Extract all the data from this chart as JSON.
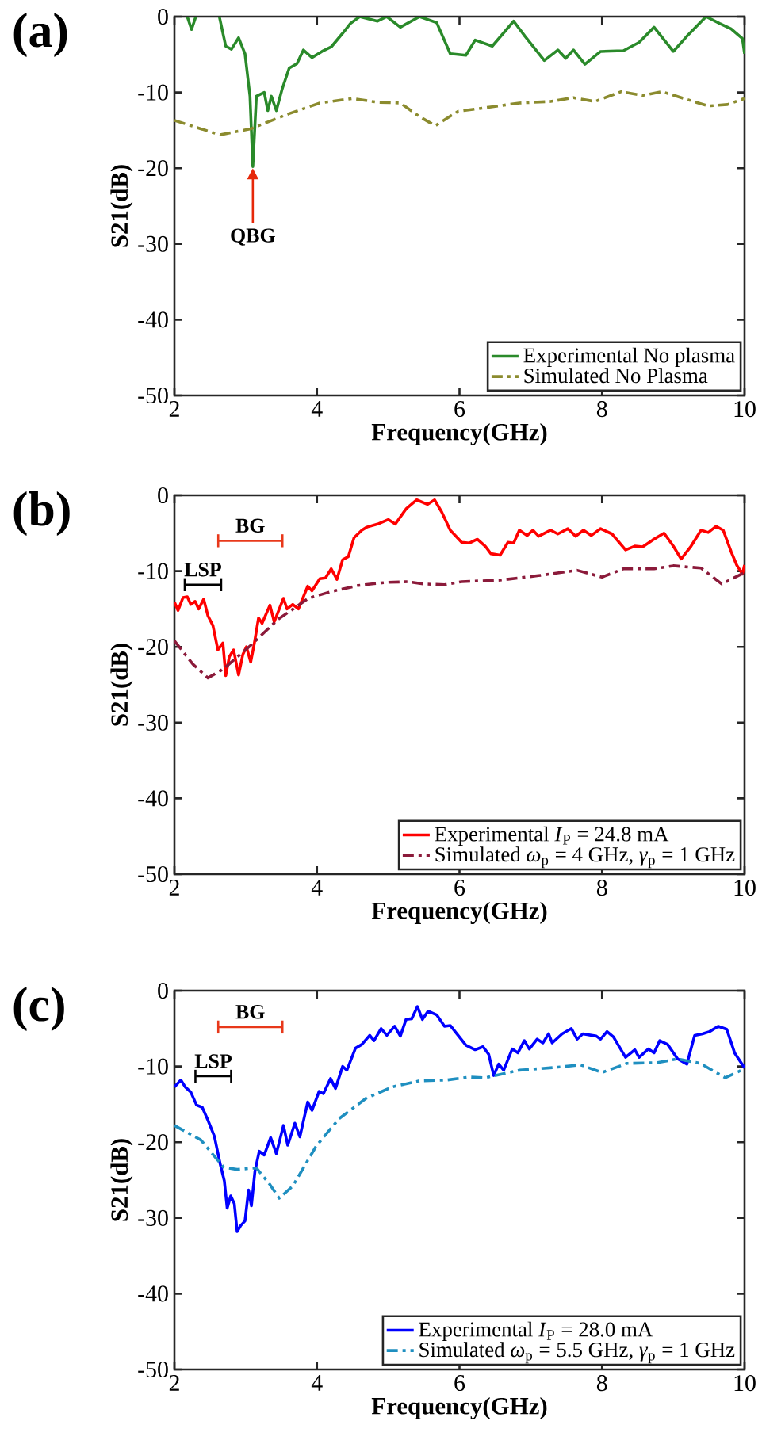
{
  "chart_data": [
    {
      "type": "line",
      "title": "(a)",
      "xlabel": "Frequency(GHz)",
      "ylabel": "S21(dB)",
      "xlim": [
        2,
        10
      ],
      "ylim": [
        -50,
        0
      ],
      "xticks": [
        2,
        4,
        6,
        8,
        10
      ],
      "yticks": [
        -50,
        -40,
        -30,
        -20,
        -10,
        0
      ],
      "legend": "bottom right",
      "marker": "none",
      "series": [
        {
          "name": "Experimental No plasma",
          "color": "#2a8a2a",
          "line_style": "solid",
          "x": [
            2.18,
            2.24,
            2.3,
            2.45,
            2.63,
            2.72,
            2.8,
            2.9,
            2.99,
            3.06,
            3.1,
            3.15,
            3.26,
            3.31,
            3.36,
            3.43,
            3.51,
            3.61,
            3.72,
            3.81,
            3.93,
            4.07,
            4.2,
            4.36,
            4.47,
            4.6,
            4.85,
            4.98,
            5.17,
            5.44,
            5.68,
            5.87,
            6.09,
            6.22,
            6.46,
            6.76,
            6.92,
            7.19,
            7.38,
            7.49,
            7.6,
            7.76,
            7.98,
            8.3,
            8.52,
            8.73,
            9.0,
            9.19,
            9.46,
            9.65,
            9.81,
            9.97,
            10
          ],
          "values": [
            0,
            -1.7,
            0,
            null,
            0,
            -3.9,
            -4.3,
            -2.8,
            -4.9,
            -10.5,
            -19.8,
            -10.5,
            -10,
            -12.4,
            -10.5,
            -12.4,
            -9.6,
            -6.8,
            -6.2,
            -4.4,
            -5.4,
            -4.6,
            -4,
            -2.2,
            -0.9,
            0,
            -0.6,
            0,
            -1.4,
            0,
            -0.8,
            -4.9,
            -5.1,
            -3.1,
            -3.9,
            -0.6,
            -2.6,
            -5.8,
            -4.4,
            -5.5,
            -4.4,
            -6.3,
            -4.6,
            -4.5,
            -3.4,
            -1.4,
            -4.6,
            -2.6,
            0,
            -0.9,
            -1.6,
            -2.9,
            -4.9
          ]
        },
        {
          "name": "Simulated No Plasma",
          "color": "#8b8b2e",
          "line_style": "dashdot",
          "x": [
            2,
            2.64,
            3.07,
            3.61,
            4.04,
            4.5,
            4.85,
            5.17,
            5.44,
            5.66,
            5.98,
            6.46,
            6.84,
            7.28,
            7.6,
            7.9,
            8.27,
            8.57,
            8.84,
            9.49,
            9.76,
            9.94,
            10
          ],
          "values": [
            -13.7,
            -15.6,
            -14.8,
            -12.8,
            -11.4,
            -10.8,
            -11.3,
            -11.4,
            -13.2,
            -14.4,
            -12.5,
            -11.9,
            -11.4,
            -11.2,
            -10.7,
            -11.2,
            -9.9,
            -10.4,
            -9.9,
            -11.8,
            -11.6,
            -11,
            -10.8
          ]
        }
      ],
      "annotations": [
        "QBG"
      ]
    },
    {
      "type": "line",
      "title": "(b)",
      "xlabel": "Frequency(GHz)",
      "ylabel": "S21(dB)",
      "xlim": [
        2,
        10
      ],
      "ylim": [
        -50,
        0
      ],
      "xticks": [
        2,
        4,
        6,
        8,
        10
      ],
      "yticks": [
        -50,
        -40,
        -30,
        -20,
        -10,
        0
      ],
      "legend": "bottom right",
      "marker": "none",
      "series": [
        {
          "name": "Experimental *I*$_{P}$ = 24.8 mA",
          "color": "#ff0000",
          "line_style": "solid",
          "x": [
            2,
            2.05,
            2.12,
            2.18,
            2.23,
            2.29,
            2.34,
            2.41,
            2.47,
            2.54,
            2.61,
            2.68,
            2.72,
            2.77,
            2.83,
            2.9,
            2.96,
            3.01,
            3.07,
            3.12,
            3.18,
            3.23,
            3.34,
            3.4,
            3.53,
            3.58,
            3.66,
            3.74,
            3.87,
            3.93,
            4.04,
            4.12,
            4.2,
            4.28,
            4.36,
            4.44,
            4.52,
            4.63,
            4.7,
            4.85,
            5.0,
            5.1,
            5.25,
            5.4,
            5.55,
            5.65,
            5.75,
            5.87,
            6.03,
            6.14,
            6.25,
            6.36,
            6.44,
            6.57,
            6.68,
            6.76,
            6.84,
            6.95,
            7.03,
            7.11,
            7.28,
            7.38,
            7.52,
            7.63,
            7.74,
            7.85,
            7.98,
            8.14,
            8.33,
            8.46,
            8.57,
            8.71,
            8.87,
            9.0,
            9.11,
            9.25,
            9.39,
            9.49,
            9.6,
            9.7,
            9.81,
            9.89,
            9.97,
            10
          ],
          "values": [
            -14.1,
            -15.2,
            -13.5,
            -13.4,
            -14.4,
            -14,
            -15,
            -13.7,
            -15.9,
            -17.2,
            -20.4,
            -19.5,
            -23.8,
            -21.3,
            -20.4,
            -23.7,
            -21,
            -20,
            -22,
            -19.6,
            -16.2,
            -16.9,
            -14.5,
            -16.7,
            -13.6,
            -15,
            -14.4,
            -15,
            -12,
            -12.6,
            -11,
            -10.9,
            -9.7,
            -11.1,
            -8.5,
            -8.1,
            -5.6,
            -4.6,
            -4.2,
            -3.8,
            -3.2,
            -3.8,
            -1.8,
            -0.6,
            -1.2,
            -0.6,
            -2.2,
            -4.6,
            -6.2,
            -6.3,
            -5.8,
            -6.7,
            -7.7,
            -7.9,
            -6.2,
            -6.3,
            -4.6,
            -5.3,
            -4.6,
            -5.4,
            -4.6,
            -5.1,
            -4.4,
            -5.4,
            -4.6,
            -5.3,
            -4.4,
            -5.1,
            -7.2,
            -6.7,
            -6.8,
            -5.9,
            -5,
            -6.7,
            -8.4,
            -6.7,
            -4.6,
            -4.9,
            -4.1,
            -4.6,
            -7.4,
            -9.2,
            -10.4,
            -9.2
          ]
        },
        {
          "name": "Simulated *ω*$_{p}$ = 4 GHz, *γ*$_{p}$ = 1 GHz",
          "color": "#8b1a3a",
          "line_style": "dashdot",
          "x": [
            2,
            2.26,
            2.47,
            2.69,
            3.07,
            3.45,
            3.88,
            4.2,
            4.58,
            4.96,
            5.28,
            5.5,
            5.79,
            6.03,
            6.57,
            7.11,
            7.65,
            8.0,
            8.3,
            8.73,
            9.0,
            9.39,
            9.68,
            10
          ],
          "values": [
            -19.2,
            -22.3,
            -24.1,
            -22.9,
            -19.8,
            -16.4,
            -13.6,
            -12.7,
            -11.9,
            -11.5,
            -11.4,
            -11.7,
            -11.8,
            -11.4,
            -11.2,
            -10.6,
            -9.9,
            -10.8,
            -9.7,
            -9.7,
            -9.3,
            -9.6,
            -11.7,
            -10.2
          ]
        },
        {
          "color": "#000000",
          "line_style": "solid",
          "x": [
            2.13,
            2.67
          ],
          "values": [
            -11.8,
            -11.8
          ]
        },
        {
          "color": "#e8381a",
          "line_style": "solid",
          "x": [
            2.6,
            3.53
          ],
          "values": [
            -6,
            -6
          ]
        }
      ],
      "annotations": [
        {
          "text": "LSP",
          "x": 2.4,
          "y": -11.8
        },
        {
          "text": "BG",
          "x": 3.065,
          "y": -6
        }
      ]
    },
    {
      "type": "line",
      "title": "(c)",
      "xlabel": "Frequency(GHz)",
      "ylabel": "S21(dB)",
      "xlim": [
        2,
        10
      ],
      "ylim": [
        -50,
        0
      ],
      "xticks": [
        2,
        4,
        6,
        8,
        10
      ],
      "yticks": [
        -50,
        -40,
        -30,
        -20,
        -10,
        0
      ],
      "legend": "bottom right",
      "marker": "none",
      "series": [
        {
          "name": "Experimental *I*$_{P}$ = 28.0 mA",
          "color": "#0000ff",
          "line_style": "solid",
          "x": [
            2,
            2.09,
            2.15,
            2.23,
            2.31,
            2.39,
            2.47,
            2.56,
            2.64,
            2.7,
            2.74,
            2.79,
            2.84,
            2.88,
            2.93,
            2.99,
            3.04,
            3.08,
            3.13,
            3.19,
            3.26,
            3.35,
            3.43,
            3.53,
            3.59,
            3.69,
            3.76,
            3.87,
            3.93,
            4.03,
            4.09,
            4.19,
            4.26,
            4.36,
            4.42,
            4.54,
            4.63,
            4.74,
            4.8,
            4.9,
            4.98,
            5.09,
            5.17,
            5.25,
            5.33,
            5.41,
            5.48,
            5.56,
            5.68,
            5.79,
            5.87,
            6.09,
            6.22,
            6.33,
            6.41,
            6.48,
            6.55,
            6.62,
            6.74,
            6.82,
            6.91,
            6.98,
            7.09,
            7.17,
            7.25,
            7.3,
            7.44,
            7.57,
            7.65,
            7.73,
            7.92,
            7.98,
            8.07,
            8.16,
            8.33,
            8.46,
            8.52,
            8.65,
            8.73,
            8.81,
            8.92,
            9.06,
            9.19,
            9.3,
            9.41,
            9.51,
            9.63,
            9.75,
            9.86,
            10
          ],
          "values": [
            -12.7,
            -11.8,
            -12.7,
            -13.4,
            -15.1,
            -15.4,
            -17.1,
            -19.2,
            -22.8,
            -25.1,
            -28.7,
            -27.1,
            -28.1,
            -31.8,
            -31,
            -30.4,
            -26.3,
            -28.4,
            -23.8,
            -21.2,
            -21.7,
            -19.4,
            -21.5,
            -17.8,
            -20.4,
            -17.5,
            -19.3,
            -14.7,
            -15.8,
            -13.3,
            -13.6,
            -11.6,
            -12.9,
            -10,
            -10.5,
            -7.6,
            -7.1,
            -5.9,
            -6.6,
            -5,
            -5.9,
            -4.7,
            -6,
            -3.8,
            -3.7,
            -2.1,
            -3.8,
            -2.7,
            -3.2,
            -4.7,
            -4.6,
            -7.2,
            -7.8,
            -7.4,
            -8.4,
            -11.2,
            -9.7,
            -10.5,
            -7.7,
            -8.2,
            -6.6,
            -7.7,
            -6.4,
            -6.9,
            -5.7,
            -6.9,
            -5.7,
            -5,
            -6.4,
            -5.7,
            -6,
            -6.4,
            -5.4,
            -6.1,
            -8.8,
            -7.8,
            -8.8,
            -7.7,
            -8.2,
            -6.6,
            -7.1,
            -9,
            -9.7,
            -5.9,
            -5.7,
            -5.4,
            -4.7,
            -5.1,
            -8.2,
            -10.2
          ]
        },
        {
          "name": "Simulated *ω*$_{p}$ = 5.5 GHz, *γ*$_{p}$ = 1 GHz",
          "color": "#1f8fc0",
          "line_style": "dashdot",
          "x": [
            2,
            2.37,
            2.53,
            2.69,
            2.88,
            3.15,
            3.34,
            3.47,
            3.66,
            3.99,
            4.31,
            4.69,
            5.06,
            5.44,
            5.82,
            6.14,
            6.36,
            6.84,
            7.38,
            7.7,
            8.0,
            8.35,
            8.78,
            9.06,
            9.38,
            9.73,
            10
          ],
          "values": [
            -17.8,
            -19.7,
            -21.5,
            -23.3,
            -23.6,
            -23.4,
            -25.6,
            -27.4,
            -25.8,
            -20.5,
            -16.9,
            -14.2,
            -12.7,
            -11.9,
            -11.8,
            -11.4,
            -11.5,
            -10.5,
            -10.1,
            -9.8,
            -10.8,
            -9.6,
            -9.5,
            -9,
            -9.6,
            -11.5,
            -10.3
          ]
        },
        {
          "color": "#000000",
          "line_style": "solid",
          "x": [
            2.28,
            2.81
          ],
          "values": [
            -11.3,
            -11.3
          ]
        },
        {
          "color": "#e8381a",
          "line_style": "solid",
          "x": [
            2.6,
            3.53
          ],
          "values": [
            -4.8,
            -4.8
          ]
        }
      ],
      "annotations": [
        {
          "text": "LSP",
          "x": 2.545,
          "y": -11.3
        },
        {
          "text": "BG",
          "x": 3.065,
          "y": -4.8
        }
      ]
    }
  ]
}
